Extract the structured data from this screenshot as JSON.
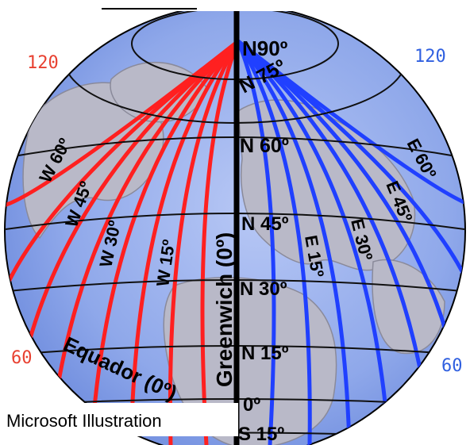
{
  "meridian_labels": {
    "west": [
      "W 60º",
      "W 45º",
      "W 30º",
      "W 15º"
    ],
    "east": [
      "E 15º",
      "E 30º",
      "E 45º",
      "E 60º"
    ],
    "greenwich": "Greenwich (0º)"
  },
  "parallel_labels": {
    "north": [
      "N90º",
      "N 75º",
      "N 60º",
      "N 45º",
      "N 30º",
      "N 15º"
    ],
    "equator_value": "0º",
    "south": [
      "S 15º"
    ],
    "equator_name": "Equador (0º)"
  },
  "edge_labels": {
    "left_top": "120",
    "right_top": "120",
    "left_bottom": "60",
    "right_bottom": "60"
  },
  "caption": "Microsoft Illustration",
  "colors": {
    "ocean": "#6f8fe0",
    "ocean_light": "#b8c8f5",
    "land": "#b9b9c8",
    "west_lines": "#ff2020",
    "east_lines": "#2040ff",
    "grid": "#101010",
    "left_edge_text": "#e84030",
    "right_edge_text": "#3060e0"
  }
}
